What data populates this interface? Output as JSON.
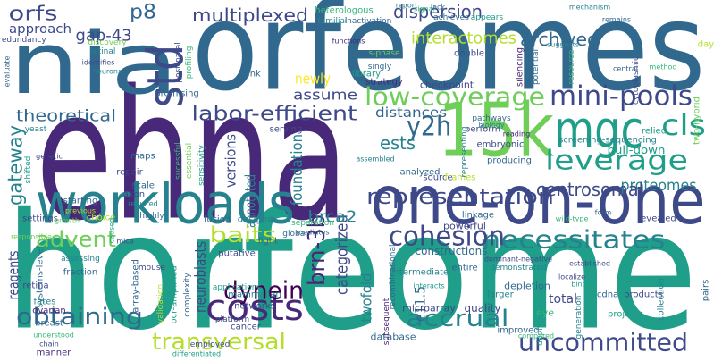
{
  "words": [
    "horfeome",
    "ehna",
    "orfeomes",
    "nia",
    "one-on-one",
    "15k",
    "mgc",
    "workloads",
    "std",
    "costs",
    "leverage",
    "low-coverage",
    "mini-pools",
    "cls",
    "y2h",
    "dynein",
    "uncommitted",
    "necessitates",
    "cohesion",
    "representation",
    "accrual",
    "obtaining",
    "transversal",
    "advent",
    "baits",
    "theoretical",
    "labor-efficient",
    "multiplexed",
    "p8",
    "orfs",
    "gap-43",
    "approach",
    "dispersion",
    "interactomes",
    "archived",
    "newly",
    "assume",
    "distances",
    "ests",
    "proteomes",
    "centrosomal",
    "pull-down",
    "screening-sequencing",
    "relied",
    "gateway",
    "versions",
    "annotated",
    "foundation",
    "brn-3b",
    "categorized",
    "brca2",
    "neuroblasts",
    "reagents",
    "twofold",
    "e11.5",
    "heterologous",
    "familial",
    "inactivation",
    "post-natal",
    "profiling",
    "promising",
    "link",
    "discovery",
    "retinal",
    "redundancy",
    "functions",
    "library",
    "s-phase",
    "singly",
    "strategy",
    "checkpoint",
    "double",
    "silencing",
    "potential",
    "suggests",
    "achieves",
    "appears",
    "report",
    "signal",
    "lack",
    "mechanism",
    "remains",
    "day",
    "cytoplasmic",
    "central",
    "method",
    "two-hybrid",
    "yeast",
    "genetic",
    "shifted",
    "starting",
    "previous",
    "repair",
    "scale",
    "axon",
    "required",
    "maps",
    "light",
    "serving",
    "sucessful",
    "essential",
    "sensitivity",
    "settings",
    "growth",
    "choice",
    "highly",
    "fusion",
    "designs",
    "mice",
    "caused",
    "global",
    "separation",
    "mediates",
    "responsible",
    "systems-level",
    "retina",
    "fraction",
    "assessing",
    "array-based",
    "fates",
    "ovarian",
    "breast",
    "understood",
    "chain",
    "mouse",
    "putative",
    "applications",
    "complexity",
    "validation",
    "pcr-amplified",
    "cancer",
    "platform",
    "mammalian",
    "networks",
    "intermediate",
    "entire",
    "demonstrated",
    "dominant-negative",
    "established",
    "binds",
    "localize",
    "pairs",
    "total",
    "eye",
    "depletion",
    "improved",
    "larger",
    "quality",
    "microarray",
    "collection",
    "projects",
    "cdna",
    "products",
    "duplication",
    "generation",
    "compared",
    "interacts",
    "database",
    "subsequent",
    "recombinational",
    "manner",
    "differentiated",
    "employed",
    "linkage",
    "powerful",
    "constructions",
    "source",
    "frames",
    "producing",
    "embryonic",
    "reading",
    "perform",
    "pathways",
    "biology",
    "representing",
    "analyzed",
    "assembled",
    "revealed",
    "form",
    "wild-type",
    "evaluate",
    "neurons",
    "identifies",
    "resource"
  ]
}
